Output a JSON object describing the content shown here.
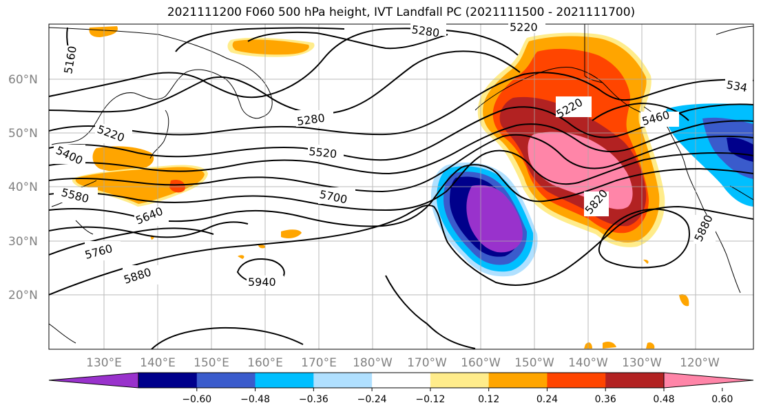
{
  "title": "2021111200 F060 500 hPa height, IVT Landfall PC (2021111500 - 2021111700)",
  "lat_labels": [
    "60°N",
    "50°N",
    "40°N",
    "30°N",
    "20°N"
  ],
  "lon_labels": [
    "130°E",
    "140°E",
    "150°E",
    "160°E",
    "170°E",
    "180°W",
    "170°W",
    "160°W",
    "150°W",
    "140°W",
    "130°W",
    "120°W"
  ],
  "contour_labels": {
    "c5160": "5160",
    "c5280a": "5280",
    "c5220a": "5220",
    "c5340": "534",
    "c5220b": "5220",
    "c5280b": "5280",
    "c5220c": "5220",
    "c5400": "5400",
    "c5520": "5520",
    "c5580": "5580",
    "c5700": "5700",
    "c5640": "5640",
    "c5760": "5760",
    "c5880a": "5880",
    "c5940": "5940",
    "c5820": "5820",
    "c5880b": "5880",
    "c5460": "5460"
  },
  "colorbar": {
    "ticks": [
      "−0.60",
      "−0.48",
      "−0.36",
      "−0.24",
      "−0.12",
      "0.12",
      "0.24",
      "0.36",
      "0.48",
      "0.60"
    ],
    "colors": [
      "#9932cc",
      "#00008b",
      "#3a5bcc",
      "#00bfff",
      "#b0e0ff",
      "#ffffff",
      "#ffec8b",
      "#ffa500",
      "#ff4500",
      "#b22222",
      "#ff85a8"
    ]
  }
}
